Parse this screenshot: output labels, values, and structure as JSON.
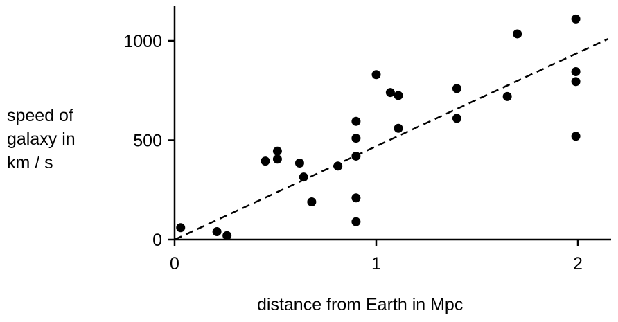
{
  "chart_data": {
    "type": "scatter",
    "title": "",
    "xlabel": "distance from Earth in Mpc",
    "ylabel_lines": [
      "speed of",
      "galaxy in",
      "km / s"
    ],
    "xlim": [
      0,
      2.15
    ],
    "ylim": [
      0,
      1180
    ],
    "x_ticks": [
      0,
      1,
      2
    ],
    "x_tick_labels": [
      "0",
      "1",
      "2"
    ],
    "y_ticks": [
      0,
      500,
      1000
    ],
    "y_tick_labels": [
      "0",
      "500",
      "1000"
    ],
    "grid": false,
    "points": [
      {
        "x": 0.03,
        "y": 60
      },
      {
        "x": 0.21,
        "y": 40
      },
      {
        "x": 0.26,
        "y": 20
      },
      {
        "x": 0.45,
        "y": 395
      },
      {
        "x": 0.51,
        "y": 445
      },
      {
        "x": 0.51,
        "y": 405
      },
      {
        "x": 0.62,
        "y": 385
      },
      {
        "x": 0.64,
        "y": 315
      },
      {
        "x": 0.68,
        "y": 190
      },
      {
        "x": 0.81,
        "y": 370
      },
      {
        "x": 0.9,
        "y": 595
      },
      {
        "x": 0.9,
        "y": 510
      },
      {
        "x": 0.9,
        "y": 420
      },
      {
        "x": 0.9,
        "y": 210
      },
      {
        "x": 0.9,
        "y": 90
      },
      {
        "x": 1.0,
        "y": 830
      },
      {
        "x": 1.07,
        "y": 740
      },
      {
        "x": 1.11,
        "y": 725
      },
      {
        "x": 1.11,
        "y": 560
      },
      {
        "x": 1.4,
        "y": 760
      },
      {
        "x": 1.4,
        "y": 610
      },
      {
        "x": 1.65,
        "y": 720
      },
      {
        "x": 1.7,
        "y": 1035
      },
      {
        "x": 1.99,
        "y": 1110
      },
      {
        "x": 1.99,
        "y": 845
      },
      {
        "x": 1.99,
        "y": 795
      },
      {
        "x": 1.99,
        "y": 520
      }
    ],
    "trend_line": {
      "style": "dashed",
      "x": [
        0,
        2.15
      ],
      "y": [
        0,
        1010
      ]
    },
    "colors": {
      "points": "#000000",
      "axes": "#000000",
      "trend": "#000000"
    }
  }
}
